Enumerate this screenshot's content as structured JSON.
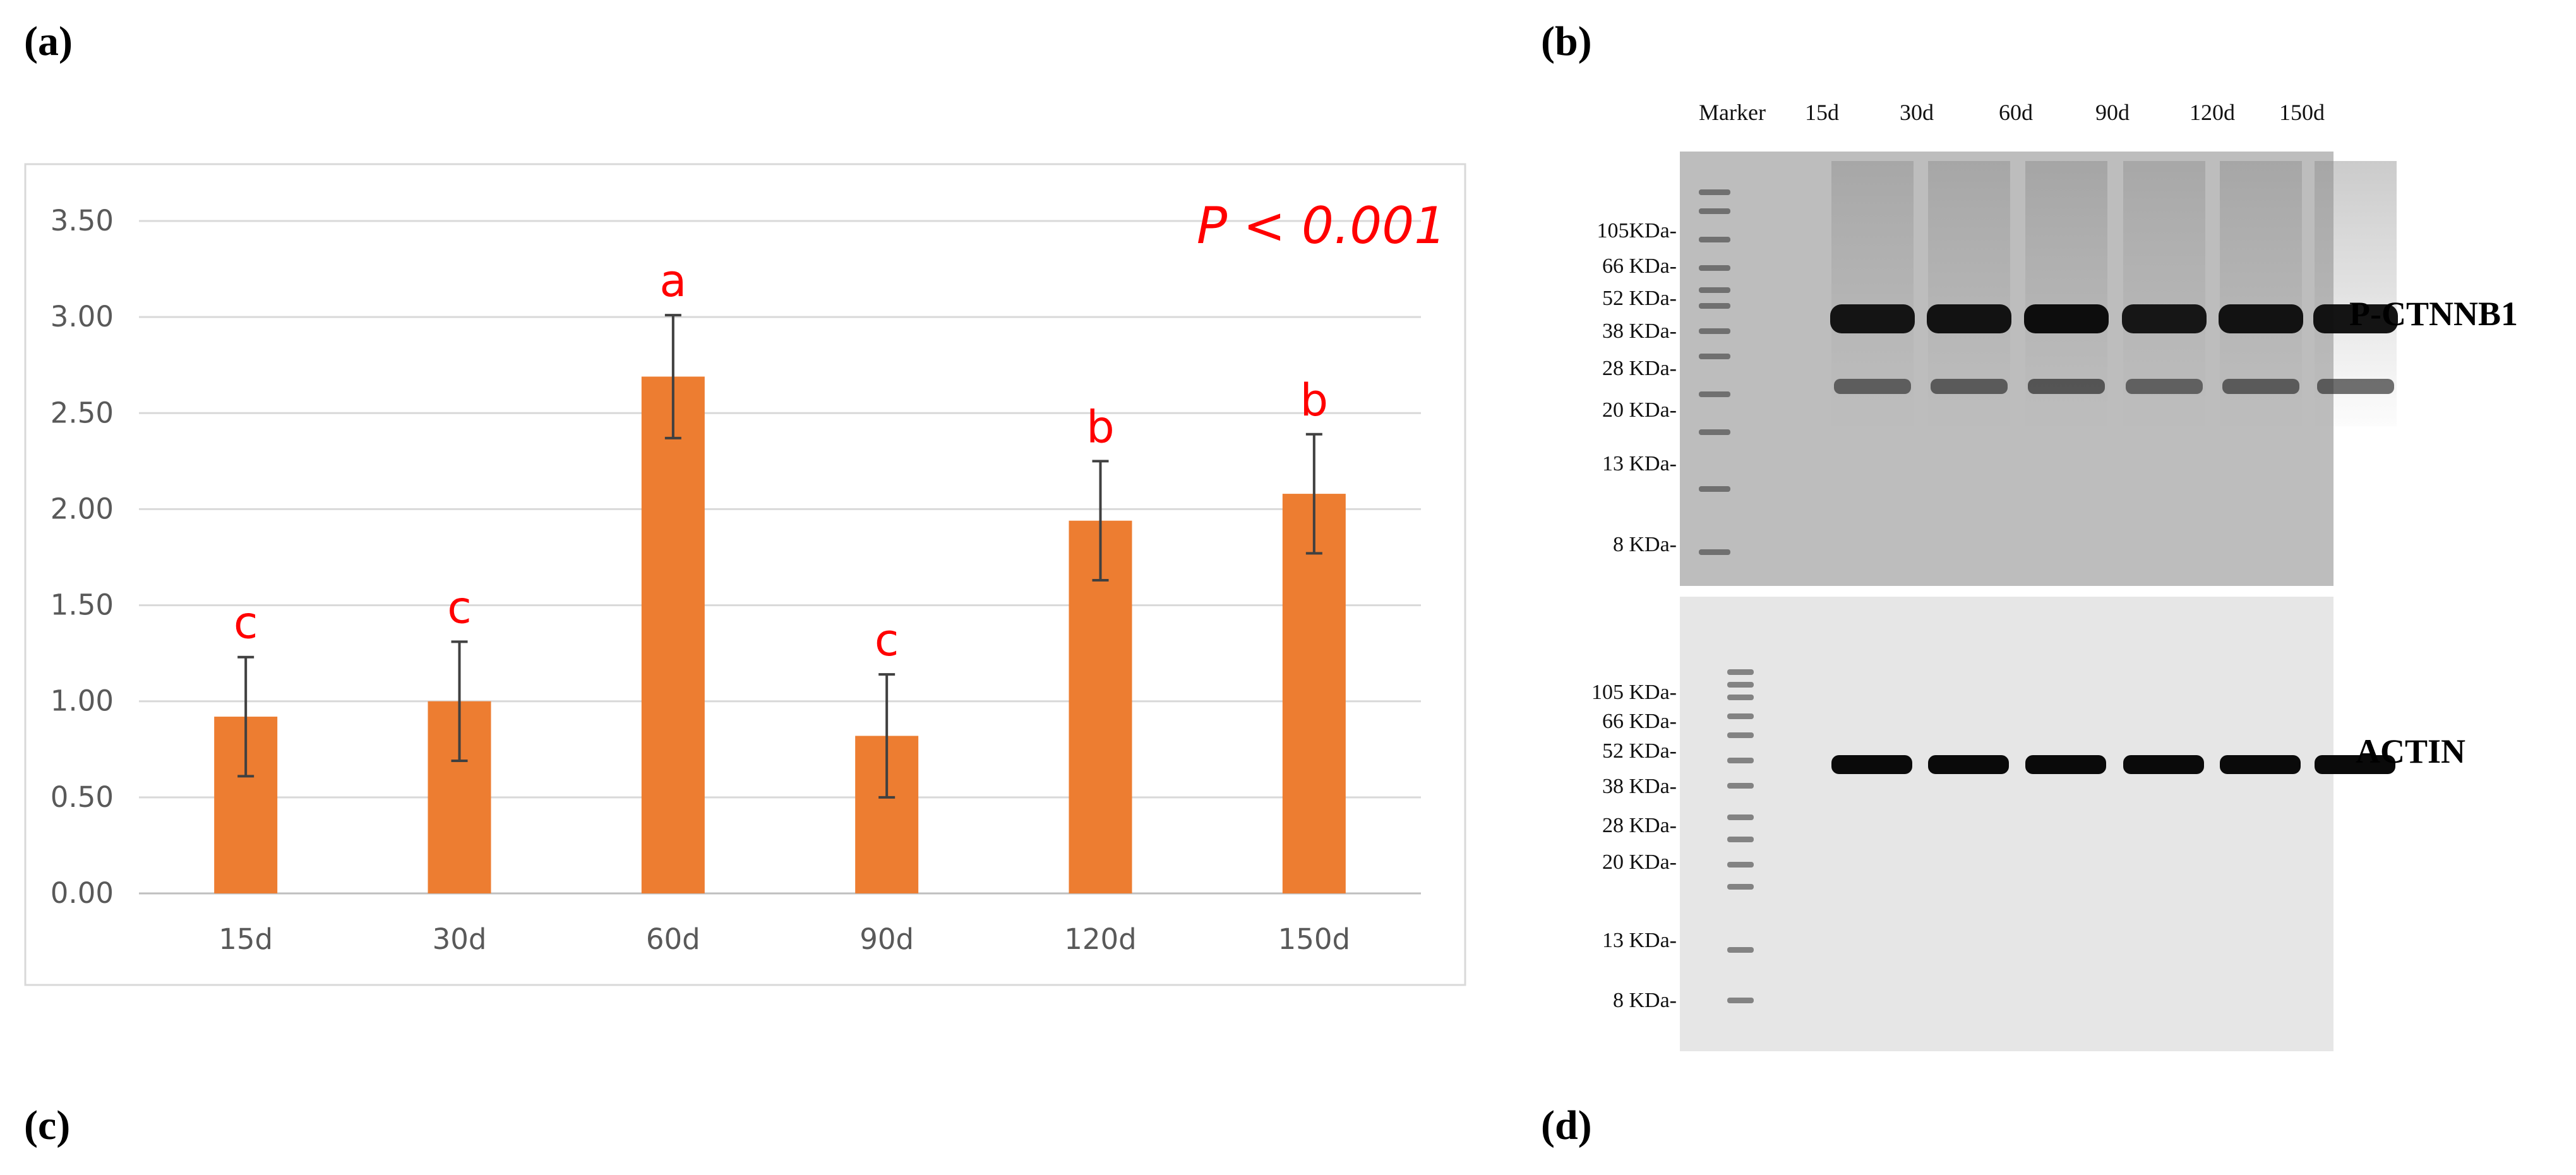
{
  "panels": {
    "a": "(a)",
    "b": "(b)",
    "c": "(c)",
    "d": "(d)"
  },
  "chart_data": {
    "type": "bar",
    "categories": [
      "15d",
      "30d",
      "60d",
      "90d",
      "120d",
      "150d"
    ],
    "values": [
      0.92,
      1.0,
      2.69,
      0.82,
      1.94,
      2.08
    ],
    "error": [
      0.31,
      0.31,
      0.32,
      0.32,
      0.31,
      0.31
    ],
    "significance": [
      "c",
      "c",
      "a",
      "c",
      "b",
      "b"
    ],
    "annotation": "P < 0.001",
    "ylim": [
      0,
      3.5
    ],
    "yticks": [
      "0.00",
      "0.50",
      "1.00",
      "1.50",
      "2.00",
      "2.50",
      "3.00",
      "3.50"
    ],
    "ytick_values": [
      0,
      0.5,
      1.0,
      1.5,
      2.0,
      2.5,
      3.0,
      3.5
    ],
    "grid": true,
    "bar_color": "#ed7d31",
    "error_color": "#404040",
    "annotation_color": "#ff0000"
  },
  "blot": {
    "marker_label": "Marker",
    "lanes": [
      "15d",
      "30d",
      "60d",
      "90d",
      "120d",
      "150d"
    ],
    "top": {
      "target": "P-CTNNB1",
      "markers": [
        "105KDa-",
        "66 KDa-",
        "52 KDa-",
        "38 KDa-",
        "28 KDa-",
        "20 KDa-",
        "13 KDa-",
        "8 KDa-"
      ],
      "intensity": [
        0.85,
        0.9,
        1.0,
        0.8,
        0.9,
        0.9
      ]
    },
    "bottom": {
      "target": "ACTIN",
      "markers": [
        "105 KDa-",
        "66 KDa-",
        "52 KDa-",
        "38 KDa-",
        "28 KDa-",
        "20 KDa-",
        "13 KDa-",
        "8 KDa-"
      ]
    }
  }
}
